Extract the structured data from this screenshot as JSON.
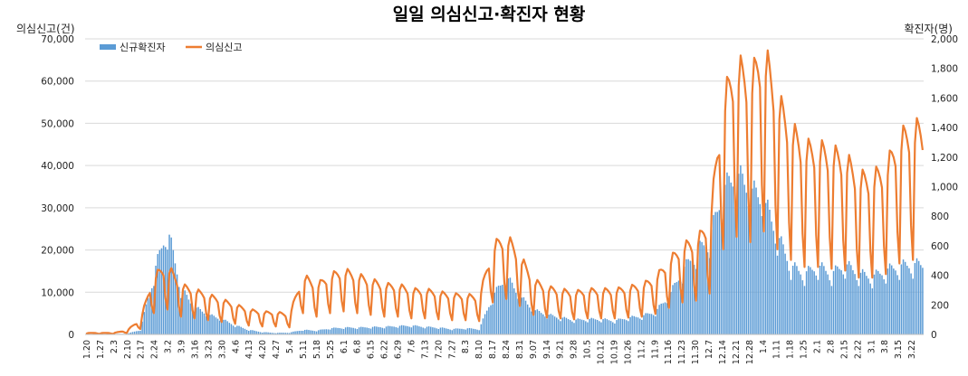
{
  "chart_data": {
    "type": "bar+line",
    "title": "일일 의심신고·확진자 현황",
    "ylabel_left": "의심신고(건)",
    "ylabel_right": "확진자(명)",
    "ylim_left": [
      0,
      70000
    ],
    "ylim_right": [
      0,
      2000
    ],
    "yticks_left": [
      "0",
      "10,000",
      "20,000",
      "30,000",
      "40,000",
      "50,000",
      "60,000",
      "70,000"
    ],
    "yticks_right": [
      "0",
      "200",
      "400",
      "600",
      "800",
      "1,000",
      "1,200",
      "1,400",
      "1,600",
      "1,800",
      "2,000"
    ],
    "grid": true,
    "legend_position": "top-left",
    "x_tick_labels": [
      "1.20",
      "1.27",
      "2.3",
      "2.10",
      "2.17",
      "2.24",
      "3.2",
      "3.9",
      "3.16",
      "3.23",
      "3.30",
      "4.6",
      "4.13",
      "4.20",
      "4.27",
      "5.4",
      "5.11",
      "5.18",
      "5.25",
      "6.1",
      "6.8",
      "6.15",
      "6.22",
      "6.29",
      "7.6",
      "7.13",
      "7.20",
      "7.27",
      "8.3",
      "8.10",
      "8.17",
      "8.24",
      "8.31",
      "9.07",
      "9.14",
      "9.21",
      "9.28",
      "10.5",
      "10.12",
      "10.19",
      "10.26",
      "11.2",
      "11.9",
      "11.16",
      "11.23",
      "11.30",
      "12.7",
      "12.14",
      "12.21",
      "12.28",
      "1.4",
      "1.11",
      "1.18",
      "1.25",
      "2.1",
      "2.8",
      "2.15",
      "2.22",
      "3.1",
      "3.8",
      "3.15",
      "3.22"
    ],
    "series": [
      {
        "name": "신규확진자",
        "type": "bar",
        "axis": "right",
        "color": "#5b9bd5",
        "weekly_values": [
          1,
          2,
          3,
          4,
          30,
          400,
          700,
          300,
          180,
          130,
          100,
          60,
          30,
          15,
          10,
          12,
          30,
          25,
          40,
          45,
          45,
          48,
          50,
          55,
          58,
          50,
          45,
          35,
          40,
          35,
          250,
          380,
          250,
          160,
          130,
          110,
          95,
          100,
          100,
          90,
          110,
          120,
          150,
          250,
          420,
          540,
          630,
          950,
          1050,
          950,
          880,
          650,
          450,
          400,
          450,
          400,
          460,
          400,
          380,
          420,
          450,
          460
        ]
      },
      {
        "name": "의심신고",
        "type": "line",
        "axis": "left",
        "color": "#ed7d31",
        "weekly_values": [
          300,
          300,
          300,
          800,
          3000,
          12000,
          14000,
          10000,
          9000,
          8000,
          7000,
          6000,
          5000,
          4500,
          4500,
          4000,
          12000,
          10000,
          12000,
          13000,
          12000,
          11000,
          10000,
          10000,
          9000,
          9000,
          8500,
          8000,
          8000,
          7500,
          18000,
          20000,
          16000,
          11000,
          9500,
          9000,
          8500,
          9000,
          9000,
          9000,
          9500,
          10000,
          11500,
          15000,
          18000,
          19000,
          23000,
          48000,
          55000,
          52000,
          58000,
          48000,
          42000,
          38000,
          38000,
          37000,
          36000,
          32000,
          32000,
          34000,
          40000,
          42000
        ]
      }
    ]
  }
}
